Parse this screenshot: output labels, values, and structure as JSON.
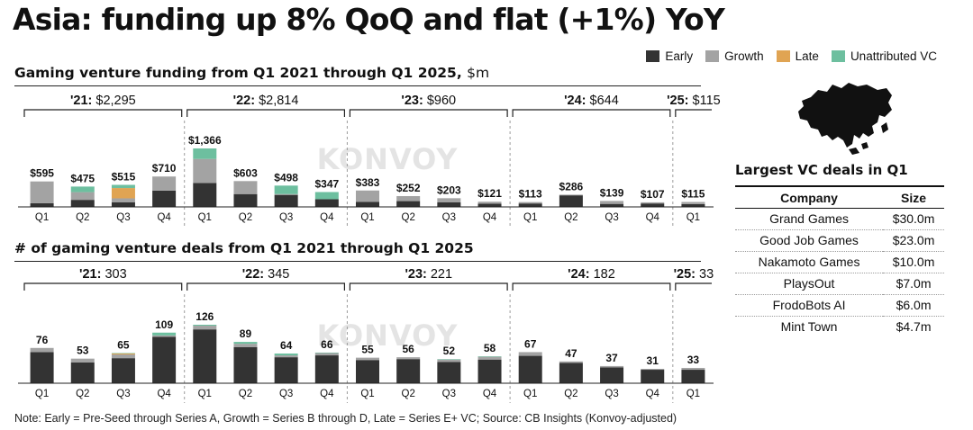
{
  "title": "Asia: funding up 8% QoQ and flat (+1%) YoY",
  "legend": [
    {
      "label": "Early",
      "color": "#333333"
    },
    {
      "label": "Growth",
      "color": "#a3a3a3"
    },
    {
      "label": "Late",
      "color": "#e0a453"
    },
    {
      "label": "Unattributed VC",
      "color": "#6dbf9f"
    }
  ],
  "watermark": "KONVOY",
  "chart_data": [
    {
      "type": "bar",
      "stacked": true,
      "title": "Gaming venture funding from Q1 2021 through Q1 2025",
      "unit_label": "$m",
      "categories": [
        "Q1",
        "Q2",
        "Q3",
        "Q4",
        "Q1",
        "Q2",
        "Q3",
        "Q4",
        "Q1",
        "Q2",
        "Q3",
        "Q4",
        "Q1",
        "Q2",
        "Q3",
        "Q4",
        "Q1"
      ],
      "totals": [
        595,
        475,
        515,
        710,
        1366,
        603,
        498,
        347,
        383,
        252,
        203,
        121,
        113,
        286,
        139,
        107,
        115
      ],
      "value_labels": [
        "$595",
        "$475",
        "$515",
        "$710",
        "$1,366",
        "$603",
        "$498",
        "$347",
        "$383",
        "$252",
        "$203",
        "$121",
        "$113",
        "$286",
        "$139",
        "$107",
        "$115"
      ],
      "series": [
        {
          "name": "Early",
          "values": [
            85,
            165,
            110,
            380,
            560,
            300,
            280,
            180,
            120,
            135,
            110,
            75,
            80,
            270,
            70,
            80,
            65
          ]
        },
        {
          "name": "Growth",
          "values": [
            510,
            180,
            90,
            330,
            560,
            303,
            20,
            0,
            263,
            117,
            93,
            46,
            33,
            16,
            69,
            27,
            50
          ]
        },
        {
          "name": "Late",
          "values": [
            0,
            0,
            240,
            0,
            0,
            0,
            0,
            0,
            0,
            0,
            0,
            0,
            0,
            0,
            0,
            0,
            0
          ]
        },
        {
          "name": "Unattributed VC",
          "values": [
            0,
            130,
            75,
            0,
            246,
            0,
            198,
            167,
            0,
            0,
            0,
            0,
            0,
            0,
            0,
            0,
            0
          ]
        }
      ],
      "years": [
        {
          "label": "'21:",
          "total": "$2,295"
        },
        {
          "label": "'22:",
          "total": "$2,814"
        },
        {
          "label": "'23:",
          "total": "$960"
        },
        {
          "label": "'24:",
          "total": "$644"
        },
        {
          "label": "'25:",
          "total": "$115"
        }
      ]
    },
    {
      "type": "bar",
      "stacked": true,
      "title": "# of gaming venture deals from Q1 2021 through Q1 2025",
      "categories": [
        "Q1",
        "Q2",
        "Q3",
        "Q4",
        "Q1",
        "Q2",
        "Q3",
        "Q4",
        "Q1",
        "Q2",
        "Q3",
        "Q4",
        "Q1",
        "Q2",
        "Q3",
        "Q4",
        "Q1"
      ],
      "totals": [
        76,
        53,
        65,
        109,
        126,
        89,
        64,
        66,
        55,
        56,
        52,
        58,
        67,
        47,
        37,
        31,
        33
      ],
      "value_labels": [
        "76",
        "53",
        "65",
        "109",
        "126",
        "89",
        "64",
        "66",
        "55",
        "56",
        "52",
        "58",
        "67",
        "47",
        "37",
        "31",
        "33"
      ],
      "series": [
        {
          "name": "Early",
          "values": [
            67,
            45,
            54,
            100,
            116,
            78,
            56,
            60,
            50,
            52,
            46,
            51,
            59,
            44,
            34,
            29,
            29
          ]
        },
        {
          "name": "Growth",
          "values": [
            9,
            8,
            8,
            3,
            8,
            7,
            4,
            5,
            5,
            4,
            5,
            6,
            8,
            3,
            3,
            2,
            4
          ]
        },
        {
          "name": "Late",
          "values": [
            0,
            0,
            2,
            0,
            0,
            0,
            0,
            0,
            0,
            0,
            0,
            0,
            0,
            0,
            0,
            0,
            0
          ]
        },
        {
          "name": "Unattributed VC",
          "values": [
            0,
            0,
            1,
            6,
            2,
            4,
            4,
            1,
            0,
            0,
            1,
            1,
            0,
            0,
            0,
            0,
            0
          ]
        }
      ],
      "years": [
        {
          "label": "'21:",
          "total": "303"
        },
        {
          "label": "'22:",
          "total": "345"
        },
        {
          "label": "'23:",
          "total": "221"
        },
        {
          "label": "'24:",
          "total": "182"
        },
        {
          "label": "'25:",
          "total": "33"
        }
      ]
    }
  ],
  "vc_deals": {
    "title": "Largest VC deals in Q1",
    "headers": [
      "Company",
      "Size"
    ],
    "rows": [
      {
        "company": "Grand Games",
        "size": "$30.0m"
      },
      {
        "company": "Good Job Games",
        "size": "$23.0m"
      },
      {
        "company": "Nakamoto Games",
        "size": "$10.0m"
      },
      {
        "company": "PlaysOut",
        "size": "$7.0m"
      },
      {
        "company": "FrodoBots AI",
        "size": "$6.0m"
      },
      {
        "company": "Mint Town",
        "size": "$4.7m"
      }
    ]
  },
  "footnote": "Note: Early = Pre-Seed through Series A, Growth = Series B through D, Late = Series E+ VC; Source: CB Insights (Konvoy-adjusted)"
}
